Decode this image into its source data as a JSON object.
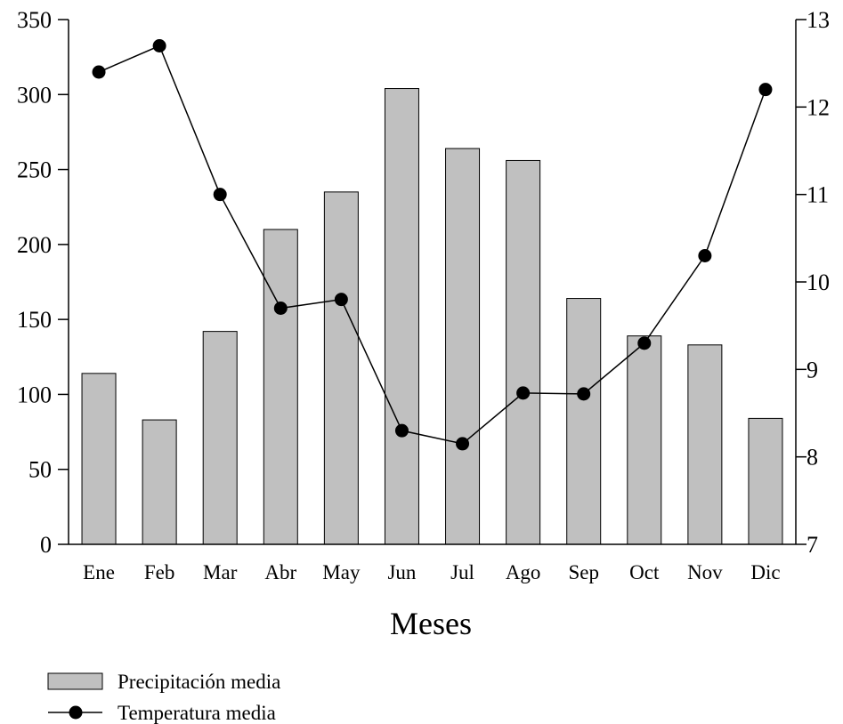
{
  "chart_data": {
    "type": "bar",
    "xlabel": "Meses",
    "categories": [
      "Ene",
      "Feb",
      "Mar",
      "Abr",
      "May",
      "Jun",
      "Jul",
      "Ago",
      "Sep",
      "Oct",
      "Nov",
      "Dic"
    ],
    "series": [
      {
        "name": "Precipitación media",
        "type": "bar",
        "axis": "left",
        "values": [
          114,
          83,
          142,
          210,
          235,
          304,
          264,
          256,
          164,
          139,
          133,
          84
        ]
      },
      {
        "name": "Temperatura media",
        "type": "line",
        "axis": "right",
        "values": [
          12.4,
          12.7,
          11.0,
          9.7,
          9.8,
          8.3,
          8.15,
          8.73,
          8.72,
          9.3,
          10.3,
          12.2
        ]
      }
    ],
    "ylim_left": [
      0,
      350
    ],
    "yticks_left": [
      "0",
      "50",
      "100",
      "150",
      "200",
      "250",
      "300",
      "350"
    ],
    "ylim_right": [
      7,
      13
    ],
    "yticks_right": [
      "7",
      "8",
      "9",
      "10",
      "11",
      "12",
      "13"
    ],
    "grid": false,
    "legend_position": "bottom-left",
    "colors": {
      "bar_fill": "#c0c0c0",
      "bar_stroke": "#000000",
      "line": "#000000",
      "marker": "#000000"
    }
  }
}
